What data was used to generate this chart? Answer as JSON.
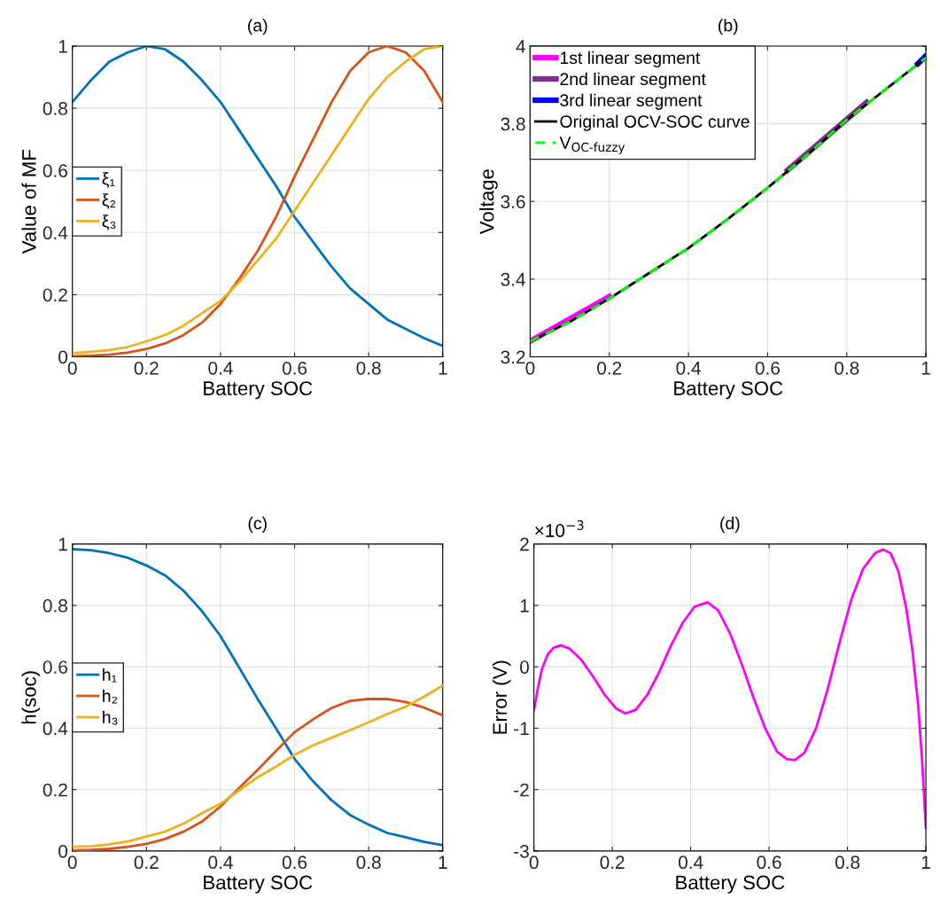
{
  "chart_data": [
    {
      "type": "line",
      "title": "(a)",
      "xlabel": "Battery SOC",
      "ylabel": "Value of MF",
      "xlim": [
        0,
        1
      ],
      "ylim": [
        0,
        1
      ],
      "xticks": [
        0,
        0.2,
        0.4,
        0.6,
        0.8,
        1
      ],
      "yticks": [
        0,
        0.2,
        0.4,
        0.6,
        0.8,
        1
      ],
      "grid": true,
      "legend": "left",
      "x": [
        0,
        0.05,
        0.1,
        0.15,
        0.2,
        0.25,
        0.3,
        0.35,
        0.4,
        0.45,
        0.5,
        0.55,
        0.6,
        0.65,
        0.7,
        0.75,
        0.8,
        0.85,
        0.9,
        0.95,
        1
      ],
      "series": [
        {
          "name": "ξ₁",
          "color": "#0072bd",
          "values": [
            0.82,
            0.89,
            0.95,
            0.98,
            1.0,
            0.99,
            0.95,
            0.89,
            0.82,
            0.73,
            0.64,
            0.55,
            0.45,
            0.37,
            0.29,
            0.22,
            0.17,
            0.12,
            0.09,
            0.06,
            0.035
          ]
        },
        {
          "name": "ξ₂",
          "color": "#d95319",
          "values": [
            0.002,
            0.004,
            0.007,
            0.014,
            0.025,
            0.043,
            0.07,
            0.11,
            0.17,
            0.25,
            0.34,
            0.45,
            0.58,
            0.7,
            0.82,
            0.92,
            0.98,
            1.0,
            0.98,
            0.92,
            0.82
          ]
        },
        {
          "name": "ξ₃",
          "color": "#edb120",
          "values": [
            0.012,
            0.016,
            0.022,
            0.032,
            0.05,
            0.07,
            0.1,
            0.14,
            0.18,
            0.24,
            0.31,
            0.38,
            0.47,
            0.56,
            0.65,
            0.74,
            0.83,
            0.9,
            0.95,
            0.99,
            1.0
          ]
        }
      ]
    },
    {
      "type": "line",
      "title": "(b)",
      "xlabel": "Battery SOC",
      "ylabel": "Voltage",
      "xlim": [
        0,
        1
      ],
      "ylim": [
        3.2,
        4
      ],
      "xticks": [
        0,
        0.2,
        0.4,
        0.6,
        0.8,
        1
      ],
      "yticks": [
        3.2,
        3.4,
        3.6,
        3.8,
        4
      ],
      "grid": true,
      "legend": "top left",
      "series": [
        {
          "name": "1st linear segment",
          "color": "#ff00ff",
          "x": [
            0,
            0.2
          ],
          "values": [
            3.24,
            3.355
          ]
        },
        {
          "name": "2nd linear segment",
          "color": "#7e2f8e",
          "x": [
            0.65,
            0.85
          ],
          "values": [
            3.68,
            3.855
          ]
        },
        {
          "name": "3rd linear segment",
          "color": "#0000ff",
          "x": [
            0.98,
            1
          ],
          "values": [
            3.955,
            3.975
          ]
        },
        {
          "name": "Original OCV-SOC curve",
          "color": "#000000",
          "line_style": "solid",
          "x": [
            0,
            0.1,
            0.2,
            0.3,
            0.4,
            0.5,
            0.6,
            0.7,
            0.8,
            0.9,
            1
          ],
          "values": [
            3.24,
            3.29,
            3.35,
            3.415,
            3.48,
            3.555,
            3.635,
            3.72,
            3.81,
            3.89,
            3.97
          ]
        },
        {
          "name": "V$_{OC-fuzzy}$",
          "color": "#00ff00",
          "line_style": "dashed",
          "x": [
            0,
            0.1,
            0.2,
            0.3,
            0.4,
            0.5,
            0.6,
            0.7,
            0.8,
            0.9,
            1
          ],
          "values": [
            3.24,
            3.29,
            3.35,
            3.415,
            3.48,
            3.555,
            3.635,
            3.72,
            3.81,
            3.89,
            3.97
          ]
        }
      ]
    },
    {
      "type": "line",
      "title": "(c)",
      "xlabel": "Battery SOC",
      "ylabel": "h(soc)",
      "xlim": [
        0,
        1
      ],
      "ylim": [
        0,
        1
      ],
      "xticks": [
        0,
        0.2,
        0.4,
        0.6,
        0.8,
        1
      ],
      "yticks": [
        0,
        0.2,
        0.4,
        0.6,
        0.8,
        1
      ],
      "grid": true,
      "legend": "left",
      "x": [
        0,
        0.05,
        0.1,
        0.15,
        0.2,
        0.25,
        0.3,
        0.35,
        0.4,
        0.45,
        0.5,
        0.55,
        0.6,
        0.65,
        0.7,
        0.75,
        0.8,
        0.85,
        0.9,
        0.95,
        1
      ],
      "series": [
        {
          "name": "h₁",
          "color": "#0072bd",
          "values": [
            0.983,
            0.98,
            0.97,
            0.955,
            0.93,
            0.898,
            0.848,
            0.781,
            0.7,
            0.598,
            0.496,
            0.399,
            0.3,
            0.227,
            0.165,
            0.117,
            0.086,
            0.059,
            0.045,
            0.03,
            0.019
          ]
        },
        {
          "name": "h₂",
          "color": "#d95319",
          "values": [
            0.002,
            0.004,
            0.007,
            0.014,
            0.023,
            0.039,
            0.063,
            0.096,
            0.145,
            0.205,
            0.264,
            0.326,
            0.387,
            0.429,
            0.466,
            0.489,
            0.495,
            0.495,
            0.485,
            0.467,
            0.442
          ]
        },
        {
          "name": "h₃",
          "color": "#edb120",
          "values": [
            0.014,
            0.015,
            0.022,
            0.031,
            0.047,
            0.063,
            0.089,
            0.123,
            0.154,
            0.197,
            0.24,
            0.275,
            0.313,
            0.344,
            0.369,
            0.394,
            0.419,
            0.446,
            0.47,
            0.503,
            0.539
          ]
        }
      ]
    },
    {
      "type": "line",
      "title": "(d)",
      "xlabel": "Battery SOC",
      "ylabel": "Error (V)",
      "xlim": [
        0,
        1
      ],
      "ylim": [
        -3,
        2
      ],
      "xticks": [
        0,
        0.2,
        0.4,
        0.6,
        0.8,
        1
      ],
      "yticks": [
        -3,
        -2,
        -1,
        0,
        1,
        2
      ],
      "grid": true,
      "annotations": [
        "×10$^{−3}$"
      ],
      "series": [
        {
          "color": "#ff00ff",
          "x": [
            0,
            0.01,
            0.02,
            0.035,
            0.05,
            0.069,
            0.09,
            0.12,
            0.15,
            0.18,
            0.21,
            0.234,
            0.26,
            0.29,
            0.32,
            0.35,
            0.38,
            0.41,
            0.443,
            0.47,
            0.5,
            0.53,
            0.56,
            0.59,
            0.62,
            0.645,
            0.666,
            0.69,
            0.72,
            0.75,
            0.78,
            0.81,
            0.84,
            0.87,
            0.891,
            0.91,
            0.93,
            0.95,
            0.965,
            0.98,
            0.99,
            1
          ],
          "values": [
            -0.71,
            -0.35,
            -0.05,
            0.2,
            0.31,
            0.35,
            0.3,
            0.12,
            -0.15,
            -0.45,
            -0.68,
            -0.76,
            -0.7,
            -0.45,
            -0.08,
            0.35,
            0.72,
            0.98,
            1.05,
            0.92,
            0.55,
            0.05,
            -0.5,
            -1.0,
            -1.38,
            -1.5,
            -1.52,
            -1.4,
            -1.0,
            -0.35,
            0.4,
            1.1,
            1.6,
            1.85,
            1.91,
            1.85,
            1.55,
            0.95,
            0.3,
            -0.6,
            -1.5,
            -2.62
          ]
        }
      ]
    }
  ]
}
